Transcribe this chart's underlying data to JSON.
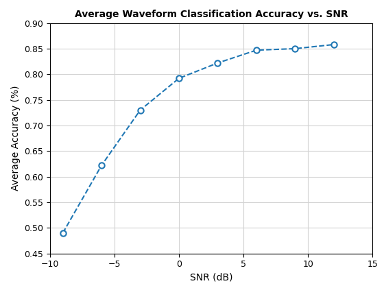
{
  "x": [
    -9,
    -6,
    -3,
    0,
    3,
    6,
    9,
    12
  ],
  "y": [
    0.49,
    0.622,
    0.73,
    0.792,
    0.822,
    0.847,
    0.85,
    0.858
  ],
  "title": "Average Waveform Classification Accuracy vs. SNR",
  "xlabel": "SNR (dB)",
  "ylabel": "Average Accuracy (%)",
  "line_color": "#1f77b4",
  "marker": "o",
  "linestyle": "--",
  "linewidth": 1.5,
  "markersize": 6,
  "xlim": [
    -10,
    15
  ],
  "ylim": [
    0.45,
    0.9
  ],
  "xticks": [
    -10,
    -5,
    0,
    5,
    10,
    15
  ],
  "yticks": [
    0.45,
    0.5,
    0.55,
    0.6,
    0.65,
    0.7,
    0.75,
    0.8,
    0.85,
    0.9
  ],
  "grid_color": "#d3d3d3",
  "background_color": "#ffffff",
  "title_fontsize": 10,
  "label_fontsize": 10,
  "tick_fontsize": 9
}
